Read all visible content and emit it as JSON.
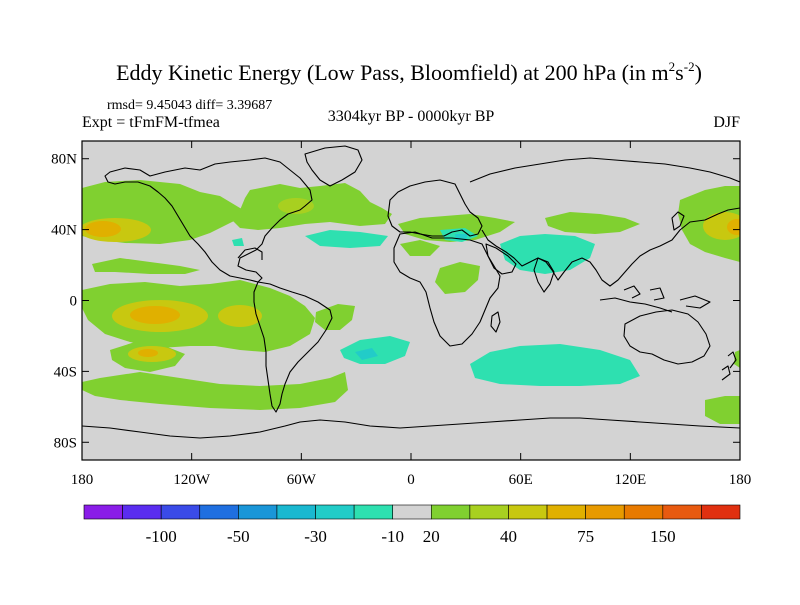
{
  "title": {
    "main": "Eddy Kinetic Energy (Low Pass, Bloomfield) at 200 hPa (in m",
    "sup1": "2",
    "mid": "s",
    "sup2": "-2",
    "end": ")"
  },
  "stats": "rmsd= 9.45043  diff= 3.39687",
  "experiment": "Expt = tFmFM-tfmea",
  "period": "3304kyr BP - 0000kyr BP",
  "season": "DJF",
  "map": {
    "lon_range": [
      -180,
      180
    ],
    "lat_range": [
      -90,
      90
    ],
    "background_color": "#d3d3d3",
    "coastline_color": "#000000",
    "lat_ticks": [
      {
        "value": 80,
        "label": "80N"
      },
      {
        "value": 40,
        "label": "40N"
      },
      {
        "value": 0,
        "label": "0"
      },
      {
        "value": -40,
        "label": "40S"
      },
      {
        "value": -80,
        "label": "80S"
      }
    ],
    "lon_ticks": [
      {
        "value": -180,
        "label": "180"
      },
      {
        "value": -120,
        "label": "120W"
      },
      {
        "value": -60,
        "label": "60W"
      },
      {
        "value": 0,
        "label": "0"
      },
      {
        "value": 60,
        "label": "60E"
      },
      {
        "value": 120,
        "label": "120E"
      },
      {
        "value": 180,
        "label": "180"
      }
    ]
  },
  "colorbar": {
    "colors": [
      "#8a1de8",
      "#5a2df0",
      "#3a4be8",
      "#1f6fe0",
      "#1a96d8",
      "#1ab8d0",
      "#22ccc8",
      "#2ee0b0",
      "#d3d3d3",
      "#80d030",
      "#a8d020",
      "#c8c810",
      "#e0b000",
      "#e89a00",
      "#e87a00",
      "#e85a10",
      "#e03010"
    ],
    "labels": [
      {
        "index": 2,
        "text": "-100"
      },
      {
        "index": 4,
        "text": "-50"
      },
      {
        "index": 6,
        "text": "-30"
      },
      {
        "index": 8,
        "text": "-10"
      },
      {
        "index": 9,
        "text": "20"
      },
      {
        "index": 11,
        "text": "40"
      },
      {
        "index": 13,
        "text": "75"
      },
      {
        "index": 15,
        "text": "150"
      }
    ]
  }
}
